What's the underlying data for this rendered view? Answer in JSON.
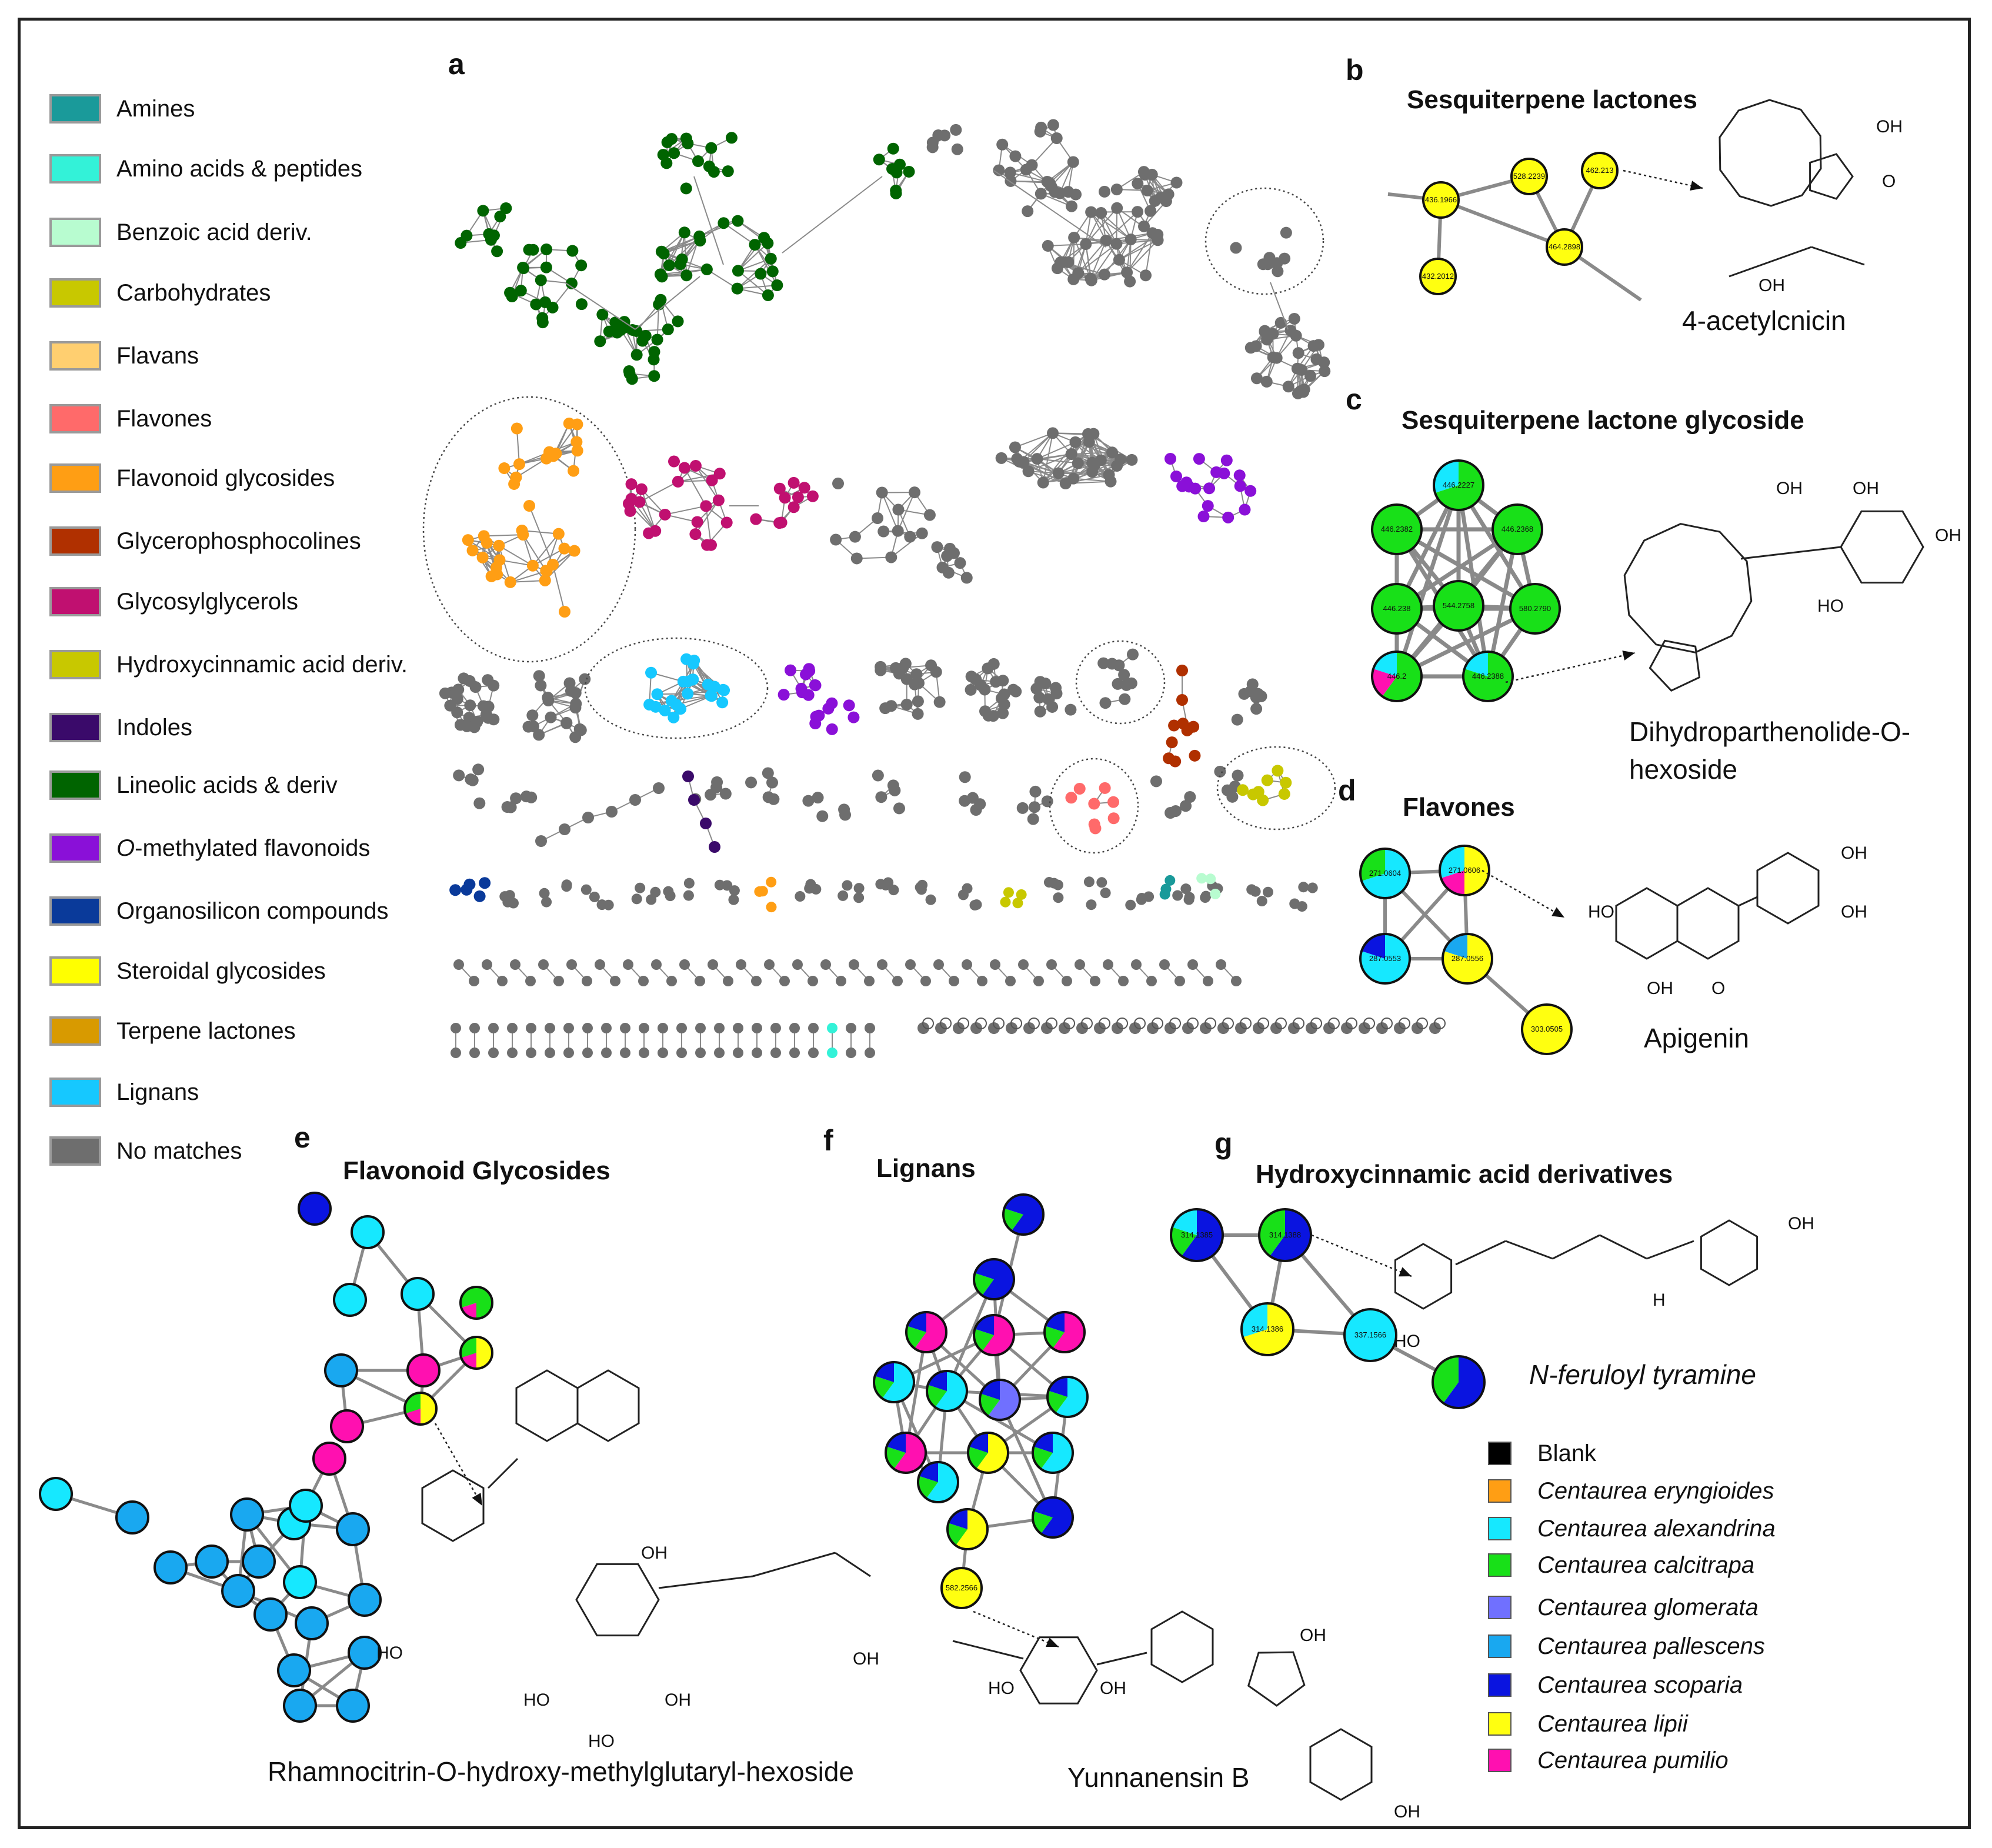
{
  "legend": {
    "items": [
      {
        "label": "Amines",
        "color": "#1a9a9a"
      },
      {
        "label": "Amino acids & peptides",
        "color": "#33f2d8"
      },
      {
        "label": "Benzoic acid deriv.",
        "color": "#b8fcd0"
      },
      {
        "label": "Carbohydrates",
        "color": "#c8c800"
      },
      {
        "label": "Flavans",
        "color": "#ffcf70"
      },
      {
        "label": "Flavones",
        "color": "#ff6a6a"
      },
      {
        "label": "Flavonoid glycosides",
        "color": "#ff9e14"
      },
      {
        "label": "Glycerophosphocolines",
        "color": "#b03000"
      },
      {
        "label": "Glycosylglycerols",
        "color": "#c01070"
      },
      {
        "label": "Hydroxycinnamic acid deriv.",
        "color": "#c8c800"
      },
      {
        "label": "Indoles",
        "color": "#3a0a6a"
      },
      {
        "label": "Lineolic acids & deriv",
        "color": "#006400"
      },
      {
        "label": "O-methylated flavonoids",
        "color": "#8a10d8"
      },
      {
        "label": "Organosilicon compounds",
        "color": "#0a3a9a"
      },
      {
        "label": "Steroidal glycosides",
        "color": "#ffff00"
      },
      {
        "label": "Terpene lactones",
        "color": "#d89a00"
      },
      {
        "label": "Lignans",
        "color": "#16c8ff"
      },
      {
        "label": "No matches",
        "color": "#6e6e6e"
      }
    ]
  },
  "panels": {
    "a": {
      "letter": "a"
    },
    "b": {
      "letter": "b",
      "title": "Sesquiterpene lactones",
      "compound": "4-acetylcnicin",
      "nodes": [
        "436.1966",
        "528.2239",
        "462.213",
        "464.2898",
        "432.2012"
      ]
    },
    "c": {
      "letter": "c",
      "title": "Sesquiterpene lactone glycoside",
      "compound": "Dihydroparthenolide-O-hexoside",
      "nodes": [
        "446.2227",
        "446.2382",
        "446.2368",
        "446.238",
        "544.2758",
        "580.2790",
        "446.2",
        "446.2388"
      ]
    },
    "d": {
      "letter": "d",
      "title": "Flavones",
      "compound": "Apigenin",
      "nodes": [
        "271.0604",
        "271.0606",
        "287.0553",
        "287.0556",
        "303.0505"
      ]
    },
    "e": {
      "letter": "e",
      "title": "Flavonoid Glycosides",
      "compound": "Rhamnocitrin-O-hydroxy-methylglutaryl-hexoside"
    },
    "f": {
      "letter": "f",
      "title": "Lignans",
      "compound": "Yunnanensin B",
      "nodes": [
        "582.2566"
      ]
    },
    "g": {
      "letter": "g",
      "title": "Hydroxycinnamic  acid derivatives",
      "compound": "N-feruloyl tyramine",
      "nodes": [
        "314.1385",
        "314.1388",
        "314.1386",
        "337.1566"
      ]
    }
  },
  "species_legend": {
    "items": [
      {
        "label": "Blank",
        "color": "#000000"
      },
      {
        "label": "Centaurea eryngioides",
        "color": "#ff9e14"
      },
      {
        "label": "Centaurea alexandrina",
        "color": "#16e8ff"
      },
      {
        "label": "Centaurea calcitrapa",
        "color": "#18e018"
      },
      {
        "label": "Centaurea glomerata",
        "color": "#7070ff"
      },
      {
        "label": "Centaurea pallescens",
        "color": "#19a8f0"
      },
      {
        "label": "Centaurea scoparia",
        "color": "#0a14e0"
      },
      {
        "label": "Centaurea lipii",
        "color": "#ffff10"
      },
      {
        "label": "Centaurea pumilio",
        "color": "#ff10b0"
      }
    ]
  }
}
